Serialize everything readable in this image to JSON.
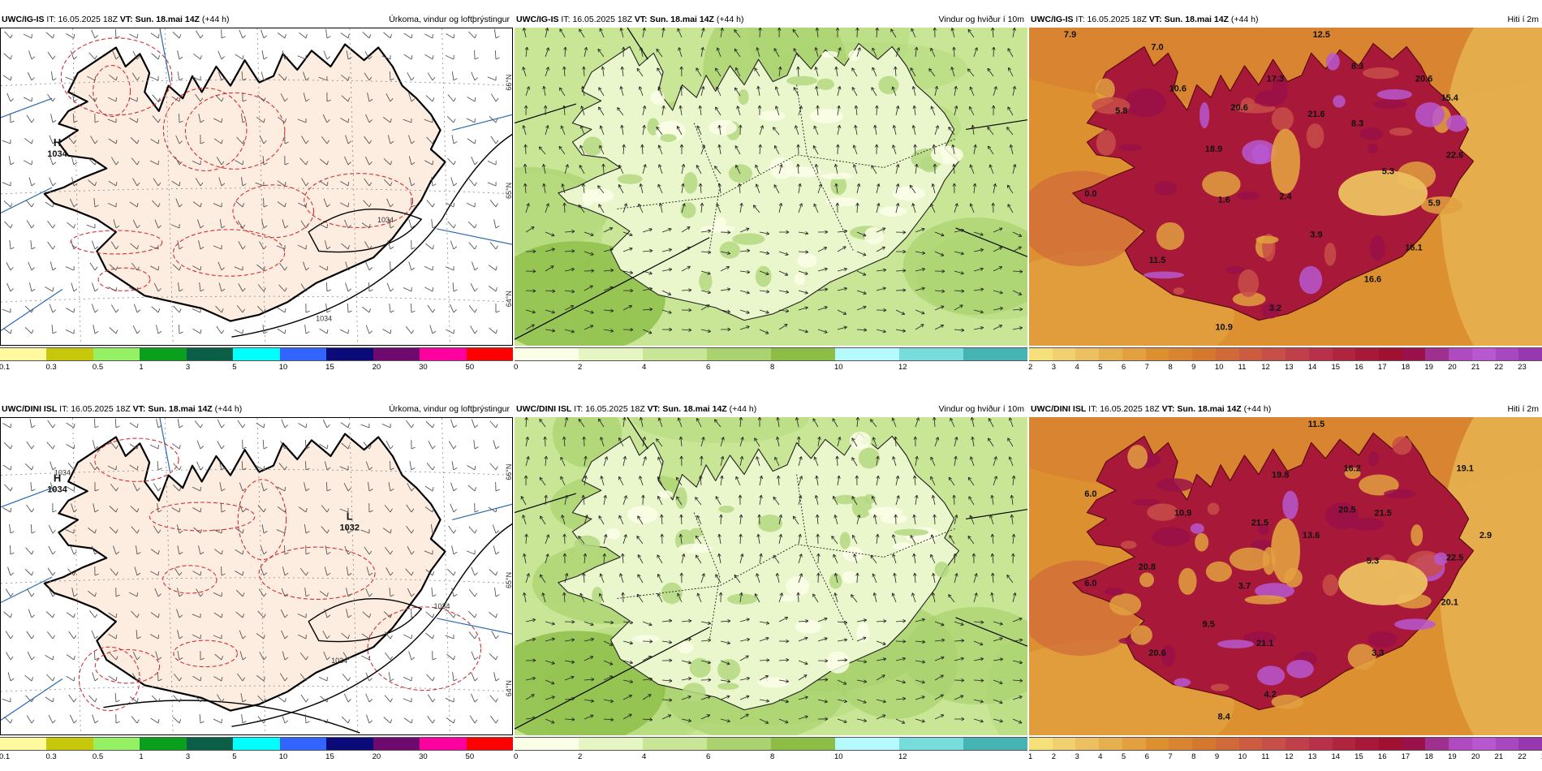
{
  "panels": [
    {
      "id": "igis-precip",
      "model": "UWC/IG-IS",
      "it_label": "IT:",
      "it_value": "16.05.2025 18Z",
      "vt_label": "VT:",
      "vt_value": "Sun. 18.mai 14Z",
      "lead": "(+44 h)",
      "title": "Úrkoma, vindur og loftþrýstingur",
      "type": "precip",
      "pressure_centers": [
        {
          "letter": "H",
          "value": "1034"
        }
      ],
      "contour_labels": [
        "1034",
        "1034"
      ],
      "lat_labels": [
        "66°N",
        "65°N",
        "64°N"
      ],
      "colorbar": {
        "colors": [
          "#fff9a0",
          "#c8c80a",
          "#96f064",
          "#0aa01e",
          "#0a5f46",
          "#00ffff",
          "#3264ff",
          "#0a0a78",
          "#6e0a6e",
          "#ff00a0",
          "#ff0000"
        ],
        "ticks": [
          "0.1",
          "0.3",
          "0.5",
          "1",
          "3",
          "5",
          "10",
          "15",
          "20",
          "30",
          "50"
        ]
      }
    },
    {
      "id": "igis-wind",
      "model": "UWC/IG-IS",
      "it_label": "IT:",
      "it_value": "16.05.2025 18Z",
      "vt_label": "VT:",
      "vt_value": "Sun. 18.mai 14Z",
      "lead": "(+44 h)",
      "title": "Vindur og hviður í 10m",
      "type": "wind",
      "colorbar": {
        "colors": [
          "#fafee6",
          "#e6f6c3",
          "#c8e696",
          "#aad26e",
          "#8cbe46",
          "#b4faff",
          "#78dcdc",
          "#46b4b4"
        ],
        "ticks": [
          "0",
          "2",
          "4",
          "6",
          "8",
          "10",
          "12"
        ]
      }
    },
    {
      "id": "igis-temp",
      "model": "UWC/IG-IS",
      "it_label": "IT:",
      "it_value": "16.05.2025 18Z",
      "vt_label": "VT:",
      "vt_value": "Sun. 18.mai 14Z",
      "lead": "(+44 h)",
      "title": "Hiti í 2m",
      "type": "temp",
      "temp_labels": [
        "7.9",
        "12.5",
        "7.0",
        "8.3",
        "10.6",
        "20.6",
        "15.4",
        "5.8",
        "17.3",
        "20.6",
        "21.6",
        "8.3",
        "18.9",
        "22.6",
        "5.3",
        "0.0",
        "1.6",
        "2.4",
        "5.9",
        "3.9",
        "16.1",
        "11.5",
        "16.6",
        "3.2",
        "10.9"
      ],
      "colorbar": {
        "colors": [
          "#f6e07a",
          "#f0d070",
          "#ecc060",
          "#e6b050",
          "#e2a040",
          "#dc9030",
          "#d98430",
          "#d47830",
          "#d06a3a",
          "#cc5c40",
          "#c84e48",
          "#c0404a",
          "#b8304a",
          "#b0243e",
          "#a81838",
          "#a01030",
          "#9a1048",
          "#a03090",
          "#b04ac0",
          "#b858d0",
          "#a848c0",
          "#9838b0"
        ],
        "ticks": [
          "2",
          "3",
          "4",
          "5",
          "6",
          "7",
          "8",
          "9",
          "10",
          "11",
          "12",
          "13",
          "14",
          "15",
          "16",
          "17",
          "18",
          "19",
          "20",
          "21",
          "22",
          "23"
        ]
      }
    },
    {
      "id": "dini-precip",
      "model": "UWC/DINI ISL",
      "it_label": "IT:",
      "it_value": "16.05.2025 18Z",
      "vt_label": "VT:",
      "vt_value": "Sun. 18.mai 14Z",
      "lead": "(+44 h)",
      "title": "Úrkoma, vindur og loftþrýstingur",
      "type": "precip",
      "pressure_centers": [
        {
          "letter": "H",
          "value": "1034"
        },
        {
          "letter": "L",
          "value": "1032"
        }
      ],
      "contour_labels": [
        "1034",
        "1034",
        "1034"
      ],
      "lat_labels": [
        "66°N",
        "65°N",
        "64°N"
      ],
      "colorbar": {
        "colors": [
          "#fff9a0",
          "#c8c80a",
          "#96f064",
          "#0aa01e",
          "#0a5f46",
          "#00ffff",
          "#3264ff",
          "#0a0a78",
          "#6e0a6e",
          "#ff00a0",
          "#ff0000"
        ],
        "ticks": [
          "0.1",
          "0.3",
          "0.5",
          "1",
          "3",
          "5",
          "10",
          "15",
          "20",
          "30",
          "50"
        ]
      }
    },
    {
      "id": "dini-wind",
      "model": "UWC/DINI ISL",
      "it_label": "IT:",
      "it_value": "16.05.2025 18Z",
      "vt_label": "VT:",
      "vt_value": "Sun. 18.mai 14Z",
      "lead": "(+44 h)",
      "title": "Vindur og hviður í 10m",
      "type": "wind",
      "colorbar": {
        "colors": [
          "#fafee6",
          "#e6f6c3",
          "#c8e696",
          "#aad26e",
          "#8cbe46",
          "#b4faff",
          "#78dcdc",
          "#46b4b4"
        ],
        "ticks": [
          "0",
          "2",
          "4",
          "6",
          "8",
          "10",
          "12"
        ]
      }
    },
    {
      "id": "dini-temp",
      "model": "UWC/DINI ISL",
      "it_label": "IT:",
      "it_value": "16.05.2025 18Z",
      "vt_label": "VT:",
      "vt_value": "Sun. 18.mai 14Z",
      "lead": "(+44 h)",
      "title": "Hiti í 2m",
      "type": "temp",
      "temp_labels": [
        "11.5",
        "19.8",
        "16.2",
        "19.1",
        "6.0",
        "10.9",
        "21.5",
        "20.5",
        "13.6",
        "21.5",
        "2.9",
        "20.8",
        "5.3",
        "22.5",
        "6.0",
        "3.7",
        "20.1",
        "9.5",
        "21.1",
        "20.6",
        "3.3",
        "4.2",
        "8.4"
      ],
      "colorbar": {
        "colors": [
          "#f6e07a",
          "#f0d070",
          "#ecc060",
          "#e6b050",
          "#e2a040",
          "#dc9030",
          "#d98430",
          "#d47830",
          "#d06a3a",
          "#cc5c40",
          "#c84e48",
          "#c0404a",
          "#b8304a",
          "#b0243e",
          "#a81838",
          "#a01030",
          "#9a1048",
          "#a03090",
          "#b04ac0",
          "#b858d0",
          "#a848c0",
          "#9838b0"
        ],
        "ticks": [
          "1",
          "2",
          "3",
          "4",
          "5",
          "6",
          "7",
          "8",
          "9",
          "10",
          "11",
          "12",
          "13",
          "14",
          "15",
          "16",
          "17",
          "18",
          "19",
          "20",
          "21",
          "22",
          "23"
        ]
      }
    }
  ]
}
